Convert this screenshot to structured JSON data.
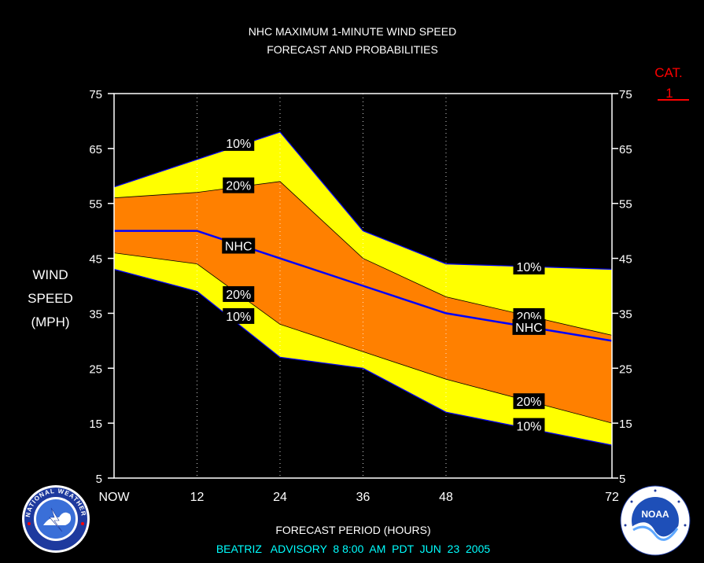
{
  "chart_data": {
    "type": "area",
    "title": [
      "NHC MAXIMUM 1-MINUTE WIND SPEED",
      "FORECAST AND PROBABILITIES"
    ],
    "xlabel": "FORECAST PERIOD (HOURS)",
    "ylabel": [
      "WIND",
      "SPEED",
      "(MPH)"
    ],
    "subtitle": "BEATRIZ   ADVISORY  8 8:00  AM  PDT  JUN  23  2005",
    "xlim": [
      0,
      72
    ],
    "ylim": [
      5,
      75
    ],
    "x_ticks": [
      0,
      12,
      24,
      36,
      48,
      72
    ],
    "x_tick_labels": [
      "NOW",
      "12",
      "24",
      "36",
      "48",
      "72"
    ],
    "y_ticks": [
      5,
      15,
      25,
      35,
      45,
      55,
      65,
      75
    ],
    "y_tick_labels": [
      "5",
      "15",
      "25",
      "35",
      "45",
      "55",
      "65",
      "75"
    ],
    "x": [
      0,
      12,
      24,
      36,
      48,
      72
    ],
    "upper_10": [
      58,
      63,
      68,
      50,
      44,
      43
    ],
    "upper_20": [
      56,
      57,
      59,
      45,
      38,
      31
    ],
    "nhc": [
      50,
      50,
      45,
      40,
      35,
      30
    ],
    "lower_20": [
      46,
      44,
      33,
      28,
      23,
      15
    ],
    "lower_10": [
      43,
      39,
      27,
      25,
      17,
      11
    ],
    "category_marker": {
      "label": "CAT.",
      "value": "1"
    },
    "curve_labels": [
      {
        "text": "10%",
        "x": 18,
        "y": 66
      },
      {
        "text": "20%",
        "x": 18,
        "y": 58.3
      },
      {
        "text": "NHC",
        "x": 18,
        "y": 47.3
      },
      {
        "text": "20%",
        "x": 18,
        "y": 38.5
      },
      {
        "text": "10%",
        "x": 18,
        "y": 34.5
      },
      {
        "text": "10%",
        "x": 60,
        "y": 43.5
      },
      {
        "text": "20%",
        "x": 60,
        "y": 34.5
      },
      {
        "text": "NHC",
        "x": 60,
        "y": 32.5
      },
      {
        "text": "20%",
        "x": 60,
        "y": 19
      },
      {
        "text": "10%",
        "x": 60,
        "y": 14.5
      }
    ],
    "colors": {
      "background": "#000000",
      "band_10": "#ffff00",
      "band_20": "#ff8000",
      "nhc_line": "#0000ff",
      "title": "#ffffff",
      "subtitle": "#00ffff",
      "category": "#ff0000"
    },
    "grid": "vertical-dotted"
  },
  "logos": {
    "left": {
      "icon": "nws-logo-icon",
      "text": "NATIONAL WEATHER SERVICE"
    },
    "right": {
      "icon": "noaa-logo-icon",
      "text": "NOAA"
    }
  }
}
